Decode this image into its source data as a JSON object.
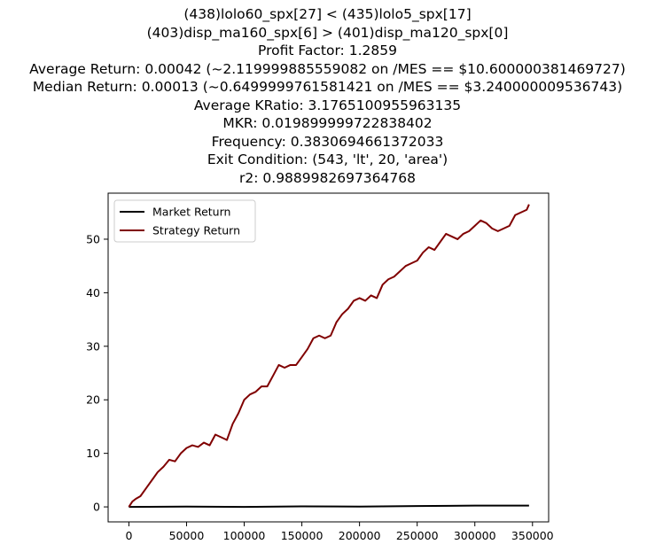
{
  "title_lines": [
    "(438)lolo60_spx[27] < (435)lolo5_spx[17]",
    "(403)disp_ma160_spx[6] > (401)disp_ma120_spx[0]",
    "Profit Factor: 1.2859",
    "Average Return: 0.00042 (~2.119999885559082 on /MES == $10.600000381469727)",
    "Median Return: 0.00013 (~0.6499999761581421 on /MES == $3.240000009536743)",
    "Average KRatio: 3.1765100955963135",
    "MKR: 0.019899999722838402",
    "Frequency: 0.3830694661372033",
    "Exit Condition: (543, 'lt', 20, 'area')",
    "r2: 0.9889982697364768"
  ],
  "chart_data": {
    "type": "line",
    "xlim": [
      -18000,
      364000
    ],
    "ylim": [
      -2.8,
      58.6
    ],
    "xticks": [
      0,
      50000,
      100000,
      150000,
      200000,
      250000,
      300000,
      350000
    ],
    "xtick_labels": [
      "0",
      "50000",
      "100000",
      "150000",
      "200000",
      "250000",
      "300000",
      "350000"
    ],
    "yticks": [
      0,
      10,
      20,
      30,
      40,
      50
    ],
    "ytick_labels": [
      "0",
      "10",
      "20",
      "30",
      "40",
      "50"
    ],
    "legend": {
      "location": "upper-left"
    },
    "grid": false,
    "series": [
      {
        "name": "Market Return",
        "color": "#000000",
        "x": [
          0,
          50000,
          100000,
          150000,
          200000,
          250000,
          300000,
          347000
        ],
        "y": [
          0.0,
          0.05,
          0.0,
          0.1,
          0.05,
          0.15,
          0.25,
          0.25
        ]
      },
      {
        "name": "Strategy Return",
        "color": "#800000",
        "x": [
          0,
          3000,
          6000,
          10000,
          15000,
          20000,
          25000,
          30000,
          35000,
          40000,
          45000,
          50000,
          55000,
          60000,
          65000,
          70000,
          75000,
          80000,
          85000,
          90000,
          95000,
          100000,
          105000,
          110000,
          115000,
          120000,
          125000,
          130000,
          135000,
          140000,
          145000,
          150000,
          155000,
          160000,
          165000,
          170000,
          175000,
          180000,
          185000,
          190000,
          195000,
          200000,
          205000,
          210000,
          215000,
          220000,
          225000,
          230000,
          235000,
          240000,
          245000,
          250000,
          255000,
          260000,
          265000,
          270000,
          275000,
          280000,
          285000,
          290000,
          295000,
          300000,
          305000,
          310000,
          315000,
          320000,
          325000,
          330000,
          335000,
          340000,
          345000,
          347000
        ],
        "y": [
          0.0,
          1.0,
          1.5,
          2.0,
          3.5,
          5.0,
          6.5,
          7.5,
          8.8,
          8.5,
          10.0,
          11.0,
          11.5,
          11.2,
          12.0,
          11.5,
          13.5,
          13.0,
          12.5,
          15.5,
          17.5,
          20.0,
          21.0,
          21.5,
          22.5,
          22.5,
          24.5,
          26.5,
          26.0,
          26.5,
          26.5,
          28.0,
          29.5,
          31.5,
          32.0,
          31.5,
          32.0,
          34.5,
          36.0,
          37.0,
          38.5,
          39.0,
          38.5,
          39.5,
          39.0,
          41.5,
          42.5,
          43.0,
          44.0,
          45.0,
          45.5,
          46.0,
          47.5,
          48.5,
          48.0,
          49.5,
          51.0,
          50.5,
          50.0,
          51.0,
          51.5,
          52.5,
          53.5,
          53.0,
          52.0,
          51.5,
          52.0,
          52.5,
          54.5,
          55.0,
          55.5,
          56.5
        ]
      }
    ]
  }
}
